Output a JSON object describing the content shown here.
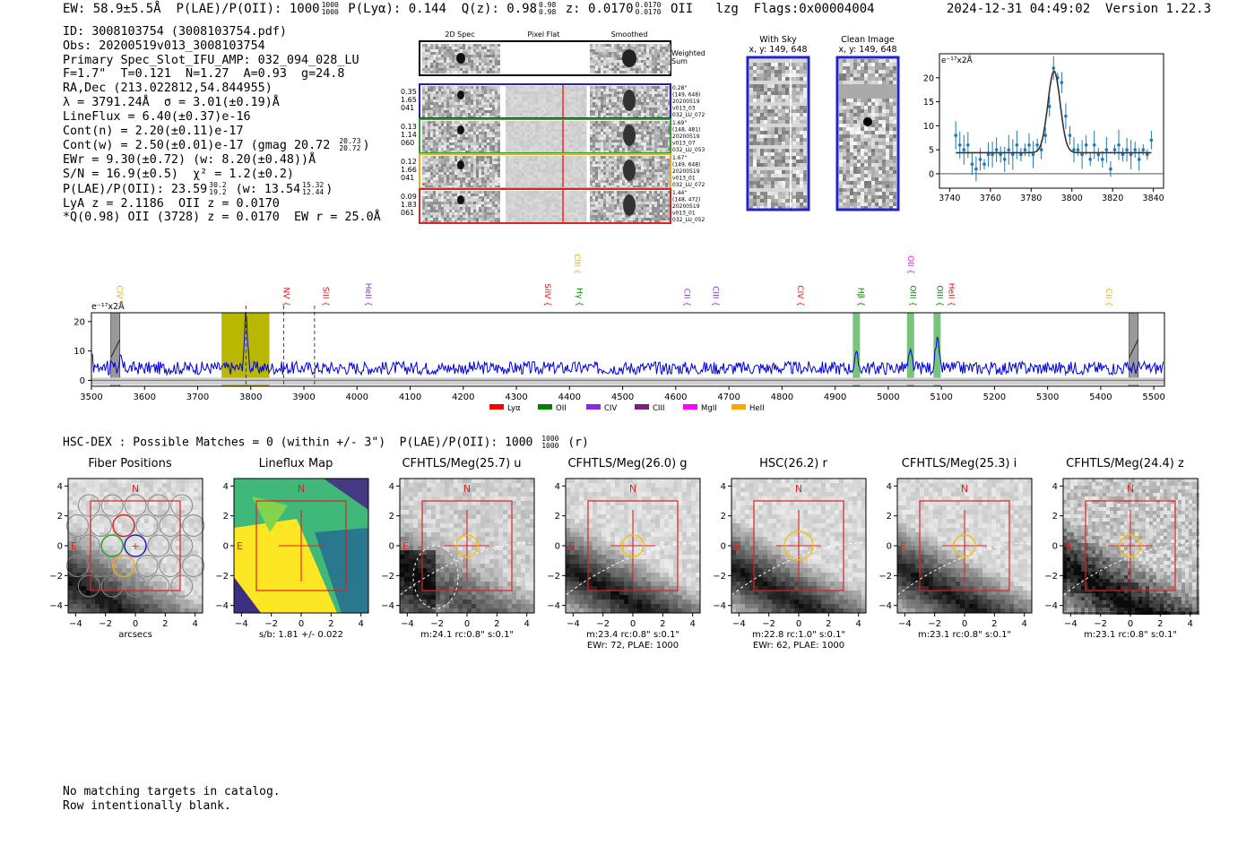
{
  "header": {
    "ew": "EW: 58.9±5.5Å",
    "plae_label": "P(LAE)/P(OII): 1000",
    "plae_hi": "1000",
    "plae_lo": "1000",
    "plya": "P(Lyα): 0.144",
    "q_label": "Q(z): 0.98",
    "q_hi": "0.98",
    "q_lo": "0.98",
    "z_label": "z: 0.0170",
    "z_hi": "0.0170",
    "z_lo": "0.0170",
    "z_line": "OII",
    "lzg": "lzg",
    "flags": "Flags:0x00004004",
    "datetime": "2024-12-31 04:49:02",
    "version": "Version 1.22.3"
  },
  "info": {
    "id": "ID: 3008103754 (3008103754.pdf)",
    "obs": "Obs: 20200519v013_3008103754",
    "primary": "Primary Spec_Slot_IFU_AMP: 032_094_028_LU",
    "f_t_n": "F=1.7\"  T=0.121  N=1.27  A=0.93  g=24.8",
    "radec": "RA,Dec (213.022812,54.844955)",
    "lambda": "λ = 3791.24Å  σ = 3.01(±0.19)Å",
    "lineflux": "LineFlux = 6.40(±0.37)e-16",
    "contn": "Cont(n) = 2.20(±0.11)e-17",
    "contw": "Cont(w) = 2.50(±0.01)e-17 (gmag 20.72",
    "contw_hi": "20.73",
    "contw_lo": "20.72",
    "contw_end": ")",
    "ewr": "EWr = 9.30(±0.72) (w: 8.20(±0.48))Å",
    "sn": "S/N = 16.9(±0.5)  χ² = 1.2(±0.2)",
    "plae": "P(LAE)/P(OII): 23.59",
    "plae_hi": "30.2",
    "plae_lo": "19.2",
    "plae_w": "(w: 13.54",
    "plae_w_hi": "15.32",
    "plae_w_lo": "12.44",
    "plae_end": ")",
    "lya_z": "LyA z = 2.1186  OII z = 0.0170",
    "qline": "*Q(0.98) OII (3728) z = 0.0170  EW r = 25.0Å"
  },
  "spec2d": {
    "col_titles": [
      "2D Spec",
      "Pixel Flat",
      "Smoothed"
    ],
    "weighted": [
      "Weighted",
      "Sum"
    ],
    "rows": [
      {
        "nums": [
          "0.35",
          "1.65",
          "041"
        ],
        "meta": [
          "0.28\"",
          "(149, 648)",
          "20200519",
          "v013_03",
          "032_LU_072"
        ],
        "color": "#1f1fbf"
      },
      {
        "nums": [
          "0.13",
          "1.14",
          "060"
        ],
        "meta": [
          "1.69\"",
          "(148, 481)",
          "20200519",
          "v013_07",
          "032_LU_053"
        ],
        "color": "#2ca02c"
      },
      {
        "nums": [
          "0.12",
          "1.66",
          "041"
        ],
        "meta": [
          "1.67\"",
          "(149, 648)",
          "20200519",
          "v013_01",
          "032_LU_072"
        ],
        "color": "#f5a623"
      },
      {
        "nums": [
          "0.09",
          "1.83",
          "061"
        ],
        "meta": [
          "1.44\"",
          "(148, 472)",
          "20200519",
          "v013_01",
          "032_LU_052"
        ],
        "color": "#d62728"
      }
    ]
  },
  "sky": {
    "with_sky": [
      "With Sky",
      "x, y: 149, 648"
    ],
    "clean": [
      "Clean Image",
      "x, y: 149, 648"
    ]
  },
  "colors": {
    "series": "#1f77b4",
    "fit": "#333333",
    "wide_line": "#0000dd",
    "lya": "#ff0000",
    "oii": "#008000",
    "civ": "#8a2be2",
    "ciii": "#7b1f7b",
    "mgii": "#ff00ff",
    "heii": "#ffa500",
    "box": "#dd2222",
    "aperture": "#f5c000"
  },
  "chart_data": [
    {
      "type": "scatter",
      "title": "",
      "units_label": "e⁻¹⁷x2Å",
      "xlim": [
        3735,
        3845
      ],
      "ylim": [
        -3,
        25
      ],
      "xticks": [
        3740,
        3760,
        3780,
        3800,
        3820,
        3840
      ],
      "yticks": [
        0,
        5,
        10,
        15,
        20
      ],
      "points_x": [
        3743,
        3745,
        3747,
        3749,
        3751,
        3753,
        3755,
        3757,
        3759,
        3761,
        3763,
        3765,
        3767,
        3769,
        3771,
        3773,
        3775,
        3777,
        3779,
        3781,
        3783,
        3785,
        3787,
        3789,
        3791,
        3793,
        3795,
        3797,
        3799,
        3801,
        3803,
        3805,
        3807,
        3809,
        3811,
        3813,
        3815,
        3817,
        3819,
        3821,
        3823,
        3825,
        3827,
        3829,
        3831,
        3833,
        3835,
        3837,
        3839
      ],
      "points_y": [
        8,
        6,
        5,
        6,
        2,
        1,
        3,
        2,
        4,
        4,
        5,
        4,
        3,
        5,
        4,
        6,
        4,
        5,
        6,
        4,
        6,
        5,
        8,
        14,
        22,
        20,
        19,
        12,
        8,
        5,
        5,
        4,
        6,
        3,
        6,
        4,
        3,
        5,
        1,
        5,
        6,
        4,
        5,
        4,
        5,
        3,
        5,
        4,
        7
      ],
      "fit_model": {
        "center": 3791.24,
        "sigma": 3.01,
        "amplitude": 17,
        "continuum": 4.4
      }
    },
    {
      "type": "line",
      "units_label": "e⁻¹⁷x2Å",
      "xlim": [
        3500,
        5520
      ],
      "ylim": [
        -2,
        23
      ],
      "xticks": [
        3500,
        3600,
        3700,
        3800,
        3900,
        4000,
        4100,
        4200,
        4300,
        4400,
        4500,
        4600,
        4700,
        4800,
        4900,
        5000,
        5100,
        5200,
        5300,
        5400,
        5500
      ],
      "yticks": [
        0,
        10,
        20
      ],
      "emission_peaks": [
        {
          "x": 3791,
          "y": 22
        },
        {
          "x": 4940,
          "y": 8
        },
        {
          "x": 5042,
          "y": 9
        },
        {
          "x": 5092,
          "y": 14
        }
      ],
      "continuum_level": 4.2,
      "highlight_band": [
        3745,
        3835
      ],
      "line_markers": [
        {
          "label": "CIV",
          "x": 3548,
          "color": "#ffa500",
          "level": 1
        },
        {
          "label": "NV",
          "x": 3862,
          "color": "#ff0000",
          "level": 1
        },
        {
          "label": "SiII",
          "x": 3936,
          "color": "#ff0000",
          "level": 1
        },
        {
          "label": "HeII",
          "x": 4016,
          "color": "#8a2be2",
          "level": 1
        },
        {
          "label": "SiIV",
          "x": 4354,
          "color": "#ff0000",
          "level": 1
        },
        {
          "label": "CIII",
          "x": 4410,
          "color": "#ffa500",
          "level": 0
        },
        {
          "label": "Hγ",
          "x": 4414,
          "color": "#008000",
          "level": 1
        },
        {
          "label": "CII",
          "x": 4616,
          "color": "#8a2be2",
          "level": 1
        },
        {
          "label": "CIII",
          "x": 4670,
          "color": "#8a2be2",
          "level": 1
        },
        {
          "label": "CIV",
          "x": 4830,
          "color": "#ff0000",
          "level": 1
        },
        {
          "label": "Hβ",
          "x": 4944,
          "color": "#008000",
          "level": 1
        },
        {
          "label": "OII",
          "x": 5037,
          "color": "#ff00ff",
          "level": 0
        },
        {
          "label": "OIII",
          "x": 5042,
          "color": "#008000",
          "level": 1
        },
        {
          "label": "OIII",
          "x": 5092,
          "color": "#008000",
          "level": 1
        },
        {
          "label": "HeII",
          "x": 5114,
          "color": "#ff0000",
          "level": 1
        },
        {
          "label": "CII",
          "x": 5410,
          "color": "#ffa500",
          "level": 1
        }
      ],
      "green_bands": [
        4940,
        5042,
        5092
      ],
      "dashed_lines": [
        3791,
        3862,
        3920
      ],
      "hatched": [
        3545,
        5462
      ],
      "legend": [
        "Lyα",
        "OII",
        "CIV",
        "CIII",
        "MgII",
        "HeII"
      ]
    }
  ],
  "match_line": "HSC-DEX : Possible Matches = 0 (within +/- 3\")  P(LAE)/P(OII): 1000",
  "match_hi": "1000",
  "match_lo": "1000",
  "match_end": "(r)",
  "cutouts": [
    {
      "title": "Fiber Positions",
      "caption": [
        "arcsecs"
      ],
      "kind": "fiber"
    },
    {
      "title": "Lineflux Map",
      "caption": [
        "s/b: 1.81 +/- 0.022"
      ],
      "kind": "lineflux"
    },
    {
      "title": "CFHTLS/Meg(25.7) u",
      "caption": [
        "m:24.1 rc:0.8\"  s:0.1\""
      ],
      "kind": "u"
    },
    {
      "title": "CFHTLS/Meg(26.0) g",
      "caption": [
        "m:23.4 rc:0.8\"  s:0.1\"",
        "EWr: 72, PLAE: 1000"
      ],
      "kind": "g"
    },
    {
      "title": "HSC(26.2) r",
      "caption": [
        "m:22.8 rc:1.0\"  s:0.1\"",
        "EWr: 62, PLAE: 1000"
      ],
      "kind": "r"
    },
    {
      "title": "CFHTLS/Meg(25.3) i",
      "caption": [
        "m:23.1 rc:0.8\"  s:0.1\""
      ],
      "kind": "i"
    },
    {
      "title": "CFHTLS/Meg(24.4) z",
      "caption": [
        "m:23.1 rc:0.8\"  s:0.1\""
      ],
      "kind": "z"
    }
  ],
  "cutout_axis": {
    "ticks": [
      "−4",
      "−2",
      "0",
      "2",
      "4"
    ],
    "north": "N",
    "east": "E"
  },
  "bottom": {
    "line1": "No matching targets in catalog.",
    "line2": "Row intentionally blank."
  }
}
